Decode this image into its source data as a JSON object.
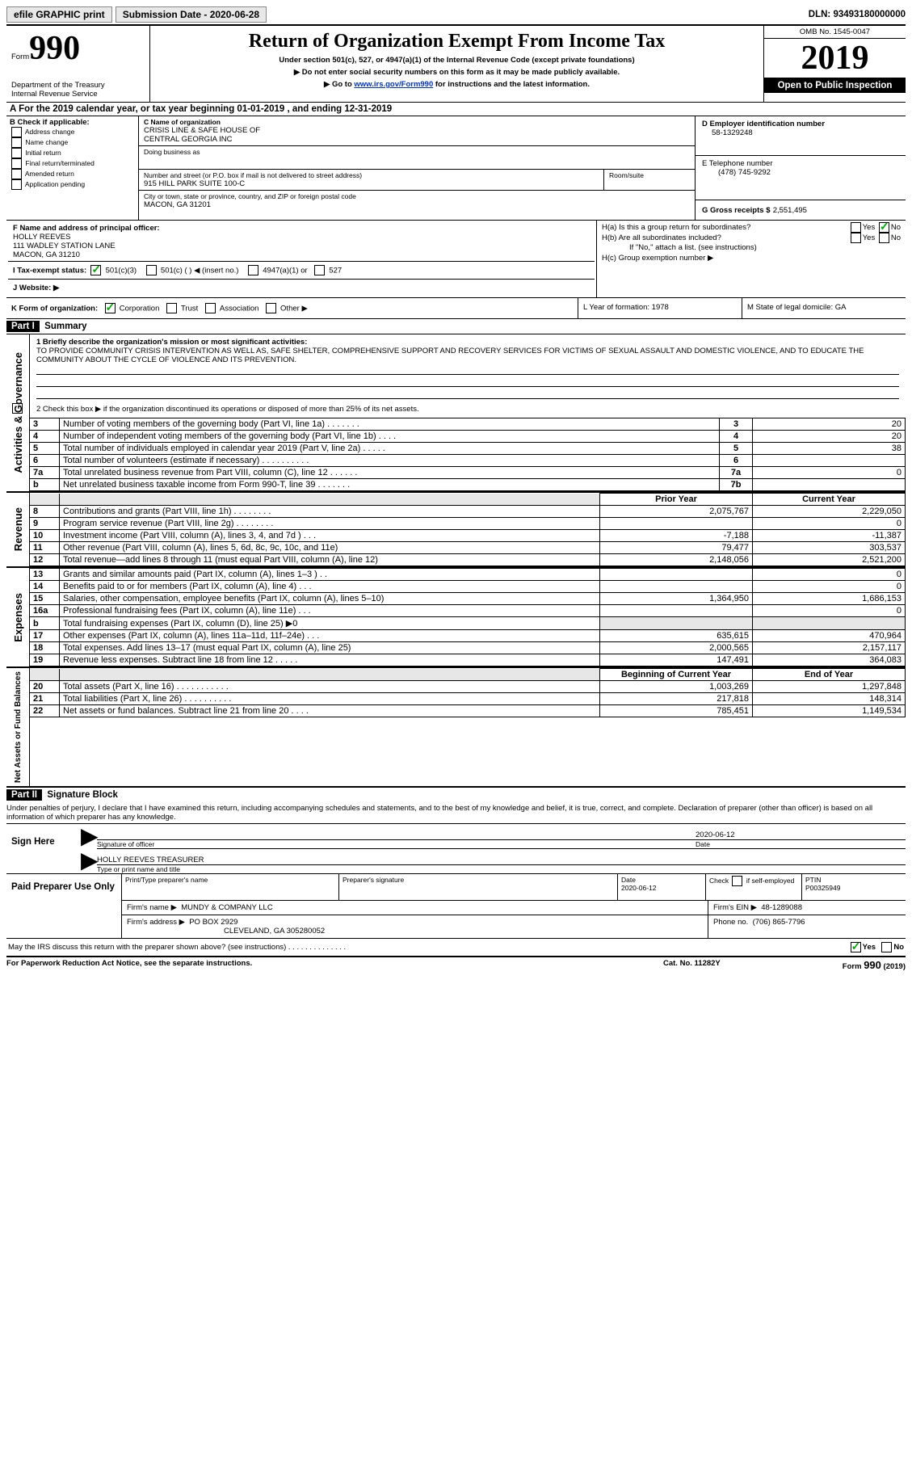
{
  "topbar": {
    "efile": "efile GRAPHIC print",
    "submission_label": "Submission Date - 2020-06-28",
    "dln_label": "DLN: 93493180000000"
  },
  "header": {
    "form_label": "Form",
    "form_number": "990",
    "dept": "Department of the Treasury\nInternal Revenue Service",
    "title": "Return of Organization Exempt From Income Tax",
    "subtitle": "Under section 501(c), 527, or 4947(a)(1) of the Internal Revenue Code (except private foundations)",
    "note1": "▶ Do not enter social security numbers on this form as it may be made publicly available.",
    "note2_pre": "▶ Go to ",
    "note2_link": "www.irs.gov/Form990",
    "note2_post": " for instructions and the latest information.",
    "omb": "OMB No. 1545-0047",
    "year": "2019",
    "open_public": "Open to Public Inspection"
  },
  "period": {
    "line_a": "A For the 2019 calendar year, or tax year beginning 01-01-2019    , and ending 12-31-2019"
  },
  "boxB": {
    "title": "B Check if applicable:",
    "items": [
      "Address change",
      "Name change",
      "Initial return",
      "Final return/terminated",
      "Amended return",
      "Application pending"
    ]
  },
  "boxC": {
    "name_label": "C Name of organization",
    "name": "CRISIS LINE & SAFE HOUSE OF\nCENTRAL GEORGIA INC",
    "dba_label": "Doing business as",
    "street_label": "Number and street (or P.O. box if mail is not delivered to street address)",
    "street": "915 HILL PARK SUITE 100-C",
    "room_label": "Room/suite",
    "city_label": "City or town, state or province, country, and ZIP or foreign postal code",
    "city": "MACON, GA   31201"
  },
  "boxD": {
    "label": "D Employer identification number",
    "value": "58-1329248"
  },
  "boxE": {
    "label": "E Telephone number",
    "value": "(478) 745-9292"
  },
  "boxG": {
    "label": "G Gross receipts $",
    "value": "2,551,495"
  },
  "boxF": {
    "label": "F  Name and address of principal officer:",
    "name": "HOLLY REEVES",
    "addr1": "111 WADLEY STATION LANE",
    "addr2": "MACON, GA   31210"
  },
  "boxH": {
    "a": "H(a)  Is this a group return for subordinates?",
    "b": "H(b)  Are all subordinates included?",
    "b_note": "If \"No,\" attach a list. (see instructions)",
    "c": "H(c)  Group exemption number ▶",
    "yes": "Yes",
    "no": "No"
  },
  "boxI": {
    "label": "I    Tax-exempt status:",
    "o1": "501(c)(3)",
    "o2": "501(c) (   ) ◀ (insert no.)",
    "o3": "4947(a)(1) or",
    "o4": "527"
  },
  "boxJ": {
    "label": "J    Website: ▶"
  },
  "boxK": {
    "label": "K Form of organization:",
    "o1": "Corporation",
    "o2": "Trust",
    "o3": "Association",
    "o4": "Other ▶"
  },
  "boxL": {
    "label": "L Year of formation: 1978"
  },
  "boxM": {
    "label": "M State of legal domicile: GA"
  },
  "part1": {
    "title": "Part I",
    "heading": "Summary",
    "l1_label": "1   Briefly describe the organization's mission or most significant activities:",
    "l1_text": "TO PROVIDE COMMUNITY CRISIS INTERVENTION AS WELL AS, SAFE SHELTER, COMPREHENSIVE SUPPORT AND RECOVERY SERVICES FOR VICTIMS OF SEXUAL ASSAULT AND DOMESTIC VIOLENCE, AND TO EDUCATE THE COMMUNITY ABOUT THE CYCLE OF VIOLENCE AND ITS PREVENTION.",
    "l2": "2    Check this box ▶        if the organization discontinued its operations or disposed of more than 25% of its net assets.",
    "governance_side": "Activities & Governance",
    "revenue_side": "Revenue",
    "expenses_side": "Expenses",
    "netassets_side": "Net Assets or Fund Balances",
    "rows_gov": [
      {
        "n": "3",
        "t": "Number of voting members of the governing body (Part VI, line 1a)   .    .    .    .    .    .    .",
        "box": "3",
        "v": "20"
      },
      {
        "n": "4",
        "t": "Number of independent voting members of the governing body (Part VI, line 1b)   .    .    .    .",
        "box": "4",
        "v": "20"
      },
      {
        "n": "5",
        "t": "Total number of individuals employed in calendar year 2019 (Part V, line 2a)   .    .    .    .    .",
        "box": "5",
        "v": "38"
      },
      {
        "n": "6",
        "t": "Total number of volunteers (estimate if necessary)    .    .    .    .    .    .    .    .    .    .",
        "box": "6",
        "v": ""
      },
      {
        "n": "7a",
        "t": "Total unrelated business revenue from Part VIII, column (C), line 12    .    .    .    .    .    .",
        "box": "7a",
        "v": "0"
      },
      {
        "n": "b",
        "t": "Net unrelated business taxable income from Form 990-T, line 39    .    .    .    .    .    .    .",
        "box": "7b",
        "v": ""
      }
    ],
    "col_prior": "Prior Year",
    "col_current": "Current Year",
    "rows_rev": [
      {
        "n": "8",
        "t": "Contributions and grants (Part VIII, line 1h)   .    .    .    .    .    .    .    .",
        "p": "2,075,767",
        "c": "2,229,050"
      },
      {
        "n": "9",
        "t": "Program service revenue (Part VIII, line 2g)   .    .    .    .    .    .    .    .",
        "p": "",
        "c": "0"
      },
      {
        "n": "10",
        "t": "Investment income (Part VIII, column (A), lines 3, 4, and 7d )   .    .    .",
        "p": "-7,188",
        "c": "-11,387"
      },
      {
        "n": "11",
        "t": "Other revenue (Part VIII, column (A), lines 5, 6d, 8c, 9c, 10c, and 11e)",
        "p": "79,477",
        "c": "303,537"
      },
      {
        "n": "12",
        "t": "Total revenue—add lines 8 through 11 (must equal Part VIII, column (A), line 12)",
        "p": "2,148,056",
        "c": "2,521,200"
      }
    ],
    "rows_exp": [
      {
        "n": "13",
        "t": "Grants and similar amounts paid (Part IX, column (A), lines 1–3 )   .    .",
        "p": "",
        "c": "0"
      },
      {
        "n": "14",
        "t": "Benefits paid to or for members (Part IX, column (A), line 4)   .    .    .",
        "p": "",
        "c": "0"
      },
      {
        "n": "15",
        "t": "Salaries, other compensation, employee benefits (Part IX, column (A), lines 5–10)",
        "p": "1,364,950",
        "c": "1,686,153"
      },
      {
        "n": "16a",
        "t": "Professional fundraising fees (Part IX, column (A), line 11e)   .    .    .",
        "p": "",
        "c": "0"
      },
      {
        "n": "b",
        "t": "Total fundraising expenses (Part IX, column (D), line 25) ▶0",
        "p": "GRAY",
        "c": "GRAY"
      },
      {
        "n": "17",
        "t": "Other expenses (Part IX, column (A), lines 11a–11d, 11f–24e)   .    .    .",
        "p": "635,615",
        "c": "470,964"
      },
      {
        "n": "18",
        "t": "Total expenses. Add lines 13–17 (must equal Part IX, column (A), line 25)",
        "p": "2,000,565",
        "c": "2,157,117"
      },
      {
        "n": "19",
        "t": "Revenue less expenses. Subtract line 18 from line 12   .    .    .    .    .",
        "p": "147,491",
        "c": "364,083"
      }
    ],
    "col_begin": "Beginning of Current Year",
    "col_end": "End of Year",
    "rows_na": [
      {
        "n": "20",
        "t": "Total assets (Part X, line 16)   .    .    .    .    .    .    .    .    .    .    .",
        "p": "1,003,269",
        "c": "1,297,848"
      },
      {
        "n": "21",
        "t": "Total liabilities (Part X, line 26)   .    .    .    .    .    .    .    .    .    .",
        "p": "217,818",
        "c": "148,314"
      },
      {
        "n": "22",
        "t": "Net assets or fund balances. Subtract line 21 from line 20   .    .    .    .",
        "p": "785,451",
        "c": "1,149,534"
      }
    ]
  },
  "part2": {
    "title": "Part II",
    "heading": "Signature Block",
    "declaration": "Under penalties of perjury, I declare that I have examined this return, including accompanying schedules and statements, and to the best of my knowledge and belief, it is true, correct, and complete. Declaration of preparer (other than officer) is based on all information of which preparer has any knowledge.",
    "sign_here": "Sign Here",
    "sig_officer": "Signature of officer",
    "sig_date": "2020-06-12",
    "date_label": "Date",
    "officer_name": "HOLLY REEVES  TREASURER",
    "type_name_label": "Type or print name and title",
    "paid_prep": "Paid Preparer Use Only",
    "prep_name_label": "Print/Type preparer's name",
    "prep_sig_label": "Preparer's signature",
    "prep_date_label": "Date",
    "prep_date": "2020-06-12",
    "check_if": "Check         if self-employed",
    "ptin_label": "PTIN",
    "ptin": "P00325949",
    "firm_name_label": "Firm's name      ▶",
    "firm_name": "MUNDY & COMPANY LLC",
    "firm_ein_label": "Firm's EIN ▶",
    "firm_ein": "48-1289088",
    "firm_addr_label": "Firm's address ▶",
    "firm_addr1": "PO BOX 2929",
    "firm_addr2": "CLEVELAND, GA   305280052",
    "phone_label": "Phone no.",
    "phone": "(706) 865-7796",
    "discuss": "May the IRS discuss this return with the preparer shown above? (see instructions)    .    .    .    .    .    .    .    .    .    .    .    .    .    .",
    "yes": "Yes",
    "no": "No"
  },
  "footer": {
    "paperwork": "For Paperwork Reduction Act Notice, see the separate instructions.",
    "catno": "Cat. No. 11282Y",
    "formno": "Form 990 (2019)"
  }
}
